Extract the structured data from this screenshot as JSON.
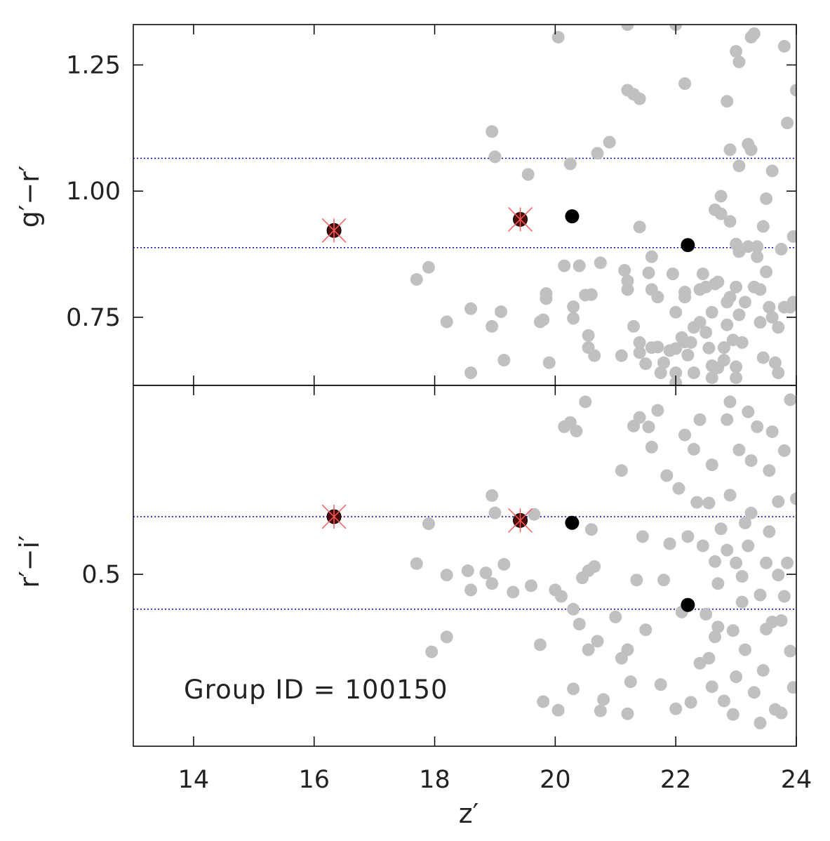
{
  "chart_data": {
    "type": "scatter",
    "xlabel": "z′",
    "xlim": [
      13,
      24
    ],
    "xticks": [
      "14",
      "16",
      "18",
      "20",
      "22",
      "24"
    ],
    "annotation": "Group ID  =  100150",
    "colors": {
      "field": "#c0c0c0",
      "member": "#000000",
      "bcg_cross": "#ff5a5a",
      "bcg_fill": "#4a0a0a",
      "cut_line": "#0000cc"
    },
    "panels": [
      {
        "id": "top",
        "ylabel": "g′−r′",
        "ylim": [
          0.615,
          1.33
        ],
        "yticks": [
          "0.75",
          "1.00",
          "1.25"
        ],
        "cut_lines": [
          0.888,
          1.065
        ],
        "members": [
          [
            20.28,
            0.95
          ],
          [
            22.2,
            0.893
          ]
        ],
        "bcg": [
          [
            16.33,
            0.922
          ],
          [
            19.42,
            0.944
          ]
        ],
        "field": [
          [
            17.7,
            0.825
          ],
          [
            17.9,
            0.849
          ],
          [
            18.2,
            0.741
          ],
          [
            18.6,
            0.767
          ],
          [
            18.6,
            0.64
          ],
          [
            18.95,
            1.118
          ],
          [
            19.0,
            1.068
          ],
          [
            18.95,
            0.732
          ],
          [
            19.1,
            0.761
          ],
          [
            19.15,
            0.665
          ],
          [
            19.55,
            1.033
          ],
          [
            19.75,
            0.741
          ],
          [
            19.8,
            0.745
          ],
          [
            19.85,
            0.797
          ],
          [
            19.85,
            0.787
          ],
          [
            19.9,
            0.66
          ],
          [
            20.05,
            1.305
          ],
          [
            20.15,
            0.852
          ],
          [
            20.25,
            1.054
          ],
          [
            20.3,
            0.771
          ],
          [
            20.3,
            0.748
          ],
          [
            20.4,
            0.852
          ],
          [
            20.5,
            0.794
          ],
          [
            20.55,
            0.714
          ],
          [
            20.55,
            0.69
          ],
          [
            20.6,
            0.795
          ],
          [
            20.65,
            0.674
          ],
          [
            20.7,
            1.075
          ],
          [
            20.75,
            0.858
          ],
          [
            20.9,
            1.097
          ],
          [
            21.1,
            0.674
          ],
          [
            21.15,
            0.843
          ],
          [
            21.2,
            1.2
          ],
          [
            21.2,
            0.822
          ],
          [
            21.2,
            0.805
          ],
          [
            21.3,
            0.732
          ],
          [
            21.3,
            1.192
          ],
          [
            21.4,
            1.183
          ],
          [
            21.4,
            0.929
          ],
          [
            21.4,
            0.7
          ],
          [
            21.4,
            0.68
          ],
          [
            21.5,
            0.658
          ],
          [
            21.55,
            0.838
          ],
          [
            21.6,
            0.87
          ],
          [
            21.6,
            0.805
          ],
          [
            21.7,
            0.79
          ],
          [
            21.7,
            0.691
          ],
          [
            21.75,
            0.64
          ],
          [
            21.8,
            0.66
          ],
          [
            21.9,
            0.684
          ],
          [
            21.95,
            0.836
          ],
          [
            22.0,
            0.76
          ],
          [
            22.0,
            0.64
          ],
          [
            22.0,
            0.688
          ],
          [
            22.1,
            0.71
          ],
          [
            22.15,
            0.8
          ],
          [
            22.15,
            1.213
          ],
          [
            22.15,
            0.79
          ],
          [
            22.15,
            0.701
          ],
          [
            22.2,
            0.675
          ],
          [
            22.25,
            0.7
          ],
          [
            22.3,
            0.64
          ],
          [
            22.3,
            0.73
          ],
          [
            22.4,
            0.805
          ],
          [
            22.4,
            0.74
          ],
          [
            22.45,
            0.836
          ],
          [
            22.5,
            0.81
          ],
          [
            22.5,
            0.72
          ],
          [
            22.55,
            0.689
          ],
          [
            22.6,
            0.76
          ],
          [
            22.6,
            0.654
          ],
          [
            22.65,
            0.816
          ],
          [
            22.65,
            0.963
          ],
          [
            22.7,
            0.82
          ],
          [
            22.7,
            0.65
          ],
          [
            22.75,
            0.99
          ],
          [
            22.75,
            0.955
          ],
          [
            22.8,
            0.665
          ],
          [
            22.8,
            0.69
          ],
          [
            22.85,
            1.178
          ],
          [
            22.85,
            0.78
          ],
          [
            22.85,
            0.735
          ],
          [
            22.9,
            1.082
          ],
          [
            22.9,
            0.94
          ],
          [
            22.9,
            0.79
          ],
          [
            22.95,
            0.705
          ],
          [
            23.0,
            1.277
          ],
          [
            23.0,
            0.895
          ],
          [
            23.0,
            0.81
          ],
          [
            23.0,
            0.652
          ],
          [
            23.05,
            1.256
          ],
          [
            23.05,
            1.05
          ],
          [
            23.05,
            0.88
          ],
          [
            23.05,
            0.755
          ],
          [
            23.1,
            0.7
          ],
          [
            23.15,
            0.78
          ],
          [
            23.2,
            0.89
          ],
          [
            23.2,
            1.093
          ],
          [
            23.25,
            1.305
          ],
          [
            23.25,
            1.082
          ],
          [
            23.3,
            1.312
          ],
          [
            23.3,
            0.81
          ],
          [
            23.35,
            0.89
          ],
          [
            23.35,
            0.87
          ],
          [
            23.4,
            0.805
          ],
          [
            23.4,
            0.74
          ],
          [
            23.45,
            0.93
          ],
          [
            23.45,
            0.67
          ],
          [
            23.5,
            0.84
          ],
          [
            23.5,
            0.985
          ],
          [
            23.55,
            0.77
          ],
          [
            23.6,
            0.75
          ],
          [
            23.6,
            1.04
          ],
          [
            23.65,
            0.66
          ],
          [
            23.7,
            0.73
          ],
          [
            23.75,
            0.885
          ],
          [
            23.8,
            1.287
          ],
          [
            23.8,
            0.77
          ],
          [
            23.85,
            1.135
          ],
          [
            23.9,
            0.77
          ],
          [
            23.95,
            0.91
          ],
          [
            23.95,
            0.78
          ],
          [
            24.0,
            1.2
          ],
          [
            21.2,
            1.33
          ],
          [
            22.0,
            1.33
          ],
          [
            22.6,
            0.63
          ],
          [
            23.0,
            0.63
          ],
          [
            23.7,
            0.64
          ],
          [
            21.6,
            0.69
          ],
          [
            22.0,
            0.62
          ]
        ]
      },
      {
        "id": "bottom",
        "ylabel": "r′−i′",
        "ylim": [
          0.1315,
          0.905
        ],
        "yticks": [
          "0.5"
        ],
        "cut_lines": [
          0.4253,
          0.6236
        ],
        "members": [
          [
            20.28,
            0.6105
          ],
          [
            22.2,
            0.4344
          ]
        ],
        "bcg": [
          [
            16.33,
            0.6236
          ],
          [
            19.42,
            0.6155
          ]
        ],
        "field": [
          [
            17.7,
            0.523
          ],
          [
            17.9,
            0.6085
          ],
          [
            17.95,
            0.3338
          ],
          [
            18.2,
            0.3658
          ],
          [
            18.2,
            0.4985
          ],
          [
            18.55,
            0.5077
          ],
          [
            18.6,
            0.4665
          ],
          [
            18.85,
            0.5031
          ],
          [
            18.95,
            0.6689
          ],
          [
            18.95,
            0.4802
          ],
          [
            19.0,
            0.6316
          ],
          [
            19.15,
            0.5214
          ],
          [
            19.3,
            0.4619
          ],
          [
            19.6,
            0.4756
          ],
          [
            19.65,
            0.6285
          ],
          [
            19.75,
            0.3491
          ],
          [
            19.8,
            0.2271
          ],
          [
            20.0,
            0.4665
          ],
          [
            20.05,
            0.2088
          ],
          [
            20.1,
            0.4528
          ],
          [
            20.15,
            0.8164
          ],
          [
            20.25,
            0.8255
          ],
          [
            20.3,
            0.4253
          ],
          [
            20.3,
            0.2545
          ],
          [
            20.35,
            0.8072
          ],
          [
            20.4,
            0.3933
          ],
          [
            20.45,
            0.4924
          ],
          [
            20.5,
            0.8698
          ],
          [
            20.55,
            0.3384
          ],
          [
            20.55,
            0.5077
          ],
          [
            20.6,
            0.5962
          ],
          [
            20.65,
            0.5168
          ],
          [
            20.7,
            0.3567
          ],
          [
            20.75,
            0.2073
          ],
          [
            20.8,
            0.2317
          ],
          [
            21.0,
            0.4085
          ],
          [
            21.1,
            0.3201
          ],
          [
            21.1,
            0.7225
          ],
          [
            21.2,
            0.3384
          ],
          [
            21.2,
            0.2011
          ],
          [
            21.25,
            0.2697
          ],
          [
            21.3,
            0.8179
          ],
          [
            21.35,
            0.4878
          ],
          [
            21.4,
            0.8362
          ],
          [
            21.45,
            0.5809
          ],
          [
            21.5,
            0.3811
          ],
          [
            21.55,
            0.816
          ],
          [
            21.6,
            0.7727
          ],
          [
            21.7,
            0.8515
          ],
          [
            21.75,
            0.2637
          ],
          [
            21.8,
            0.4878
          ],
          [
            21.85,
            0.7117
          ],
          [
            21.9,
            0.5656
          ],
          [
            22.0,
            0.2118
          ],
          [
            22.05,
            0.6842
          ],
          [
            22.1,
            0.4192
          ],
          [
            22.15,
            0.7988
          ],
          [
            22.2,
            0.5809
          ],
          [
            22.25,
            0.2256
          ],
          [
            22.3,
            0.7682
          ],
          [
            22.35,
            0.6543
          ],
          [
            22.4,
            0.8316
          ],
          [
            22.45,
            0.5611
          ],
          [
            22.5,
            0.4146
          ],
          [
            22.55,
            0.3201
          ],
          [
            22.6,
            0.7347
          ],
          [
            22.6,
            0.2591
          ],
          [
            22.65,
            0.5275
          ],
          [
            22.7,
            0.3872
          ],
          [
            22.75,
            0.5977
          ],
          [
            22.8,
            0.2286
          ],
          [
            22.85,
            0.8316
          ],
          [
            22.9,
            0.6697
          ],
          [
            22.95,
            0.3796
          ],
          [
            23.0,
            0.5245
          ],
          [
            23.0,
            0.2804
          ],
          [
            23.05,
            0.7667
          ],
          [
            23.1,
            0.4406
          ],
          [
            23.15,
            0.3384
          ],
          [
            23.2,
            0.5611
          ],
          [
            23.25,
            0.6314
          ],
          [
            23.3,
            0.2469
          ],
          [
            23.35,
            0.8164
          ],
          [
            23.4,
            0.4558
          ],
          [
            23.45,
            0.2941
          ],
          [
            23.5,
            0.5245
          ],
          [
            23.55,
            0.7225
          ],
          [
            23.6,
            0.3979
          ],
          [
            23.65,
            0.2103
          ],
          [
            23.7,
            0.6558
          ],
          [
            23.75,
            0.4009
          ],
          [
            23.8,
            0.7652
          ],
          [
            23.85,
            0.5245
          ],
          [
            23.9,
            0.3354
          ],
          [
            23.95,
            0.2576
          ],
          [
            24.0,
            0.6619
          ],
          [
            22.9,
            0.8698
          ],
          [
            23.2,
            0.8484
          ],
          [
            23.6,
            0.8057
          ],
          [
            23.9,
            0.8743
          ],
          [
            22.7,
            0.4802
          ],
          [
            23.1,
            0.4955
          ],
          [
            23.5,
            0.3826
          ],
          [
            23.8,
            0.4528
          ],
          [
            22.4,
            0.3094
          ],
          [
            22.95,
            0.1996
          ],
          [
            23.4,
            0.1813
          ],
          [
            23.75,
            0.2027
          ],
          [
            22.55,
            0.6529
          ],
          [
            23.25,
            0.7438
          ],
          [
            22.85,
            0.5519
          ],
          [
            23.55,
            0.5916
          ],
          [
            23.15,
            0.6102
          ],
          [
            22.65,
            0.3659
          ],
          [
            23.7,
            0.4985
          ]
        ]
      }
    ]
  }
}
